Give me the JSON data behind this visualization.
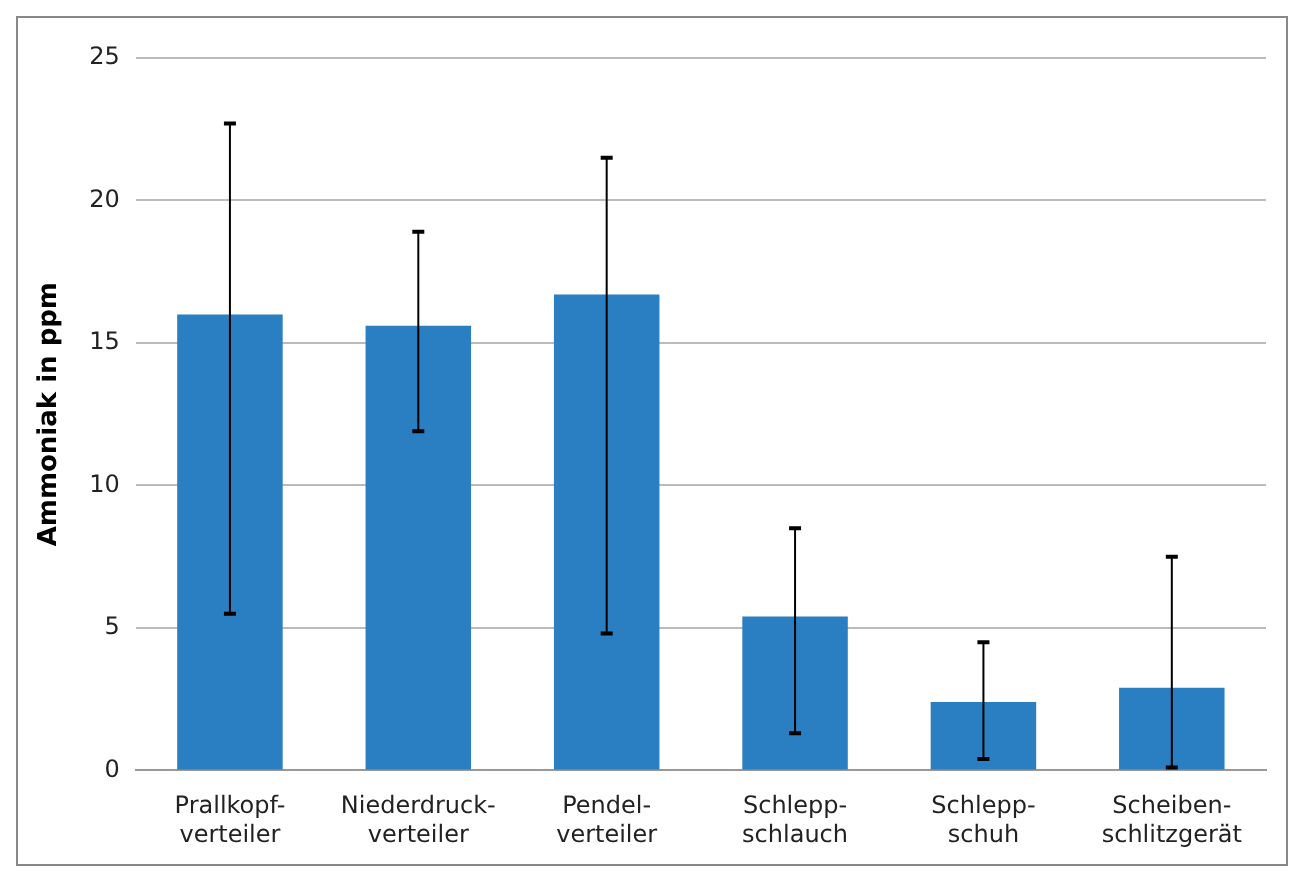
{
  "chart_data": {
    "type": "bar",
    "ylabel": "Ammoniak in ppm",
    "categories": [
      "Prallkopf-\nverteiler",
      "Niederdruck-\nverteiler",
      "Pendel-\nverteiler",
      "Schlepp-\nschlauch",
      "Schlepp-\nschuh",
      "Scheiben-\nschlitzgerät"
    ],
    "values": [
      16.0,
      15.6,
      16.7,
      5.4,
      2.4,
      2.9
    ],
    "errors": [
      [
        5.5,
        22.7
      ],
      [
        11.9,
        18.9
      ],
      [
        4.8,
        21.5
      ],
      [
        1.3,
        8.5
      ],
      [
        0.4,
        4.5
      ],
      [
        0.1,
        7.5
      ]
    ],
    "color": "#2a7fc2",
    "ylim": [
      0,
      25
    ],
    "yticks": [
      0,
      5,
      10,
      15,
      20,
      25
    ],
    "grid": "y",
    "legend": false
  }
}
